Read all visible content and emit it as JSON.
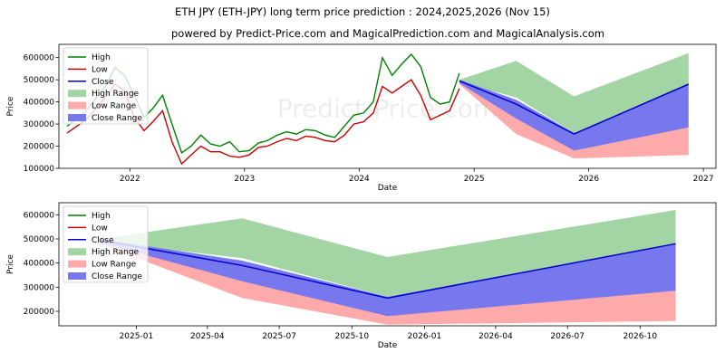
{
  "title": "ETH JPY (ETH-JPY) long term price prediction : 2024,2025,2026 (Nov 15)",
  "subtitle": "powered by Predict-Price.com and MagicalPrediction.com and MagicalAnalysis.com",
  "watermark": "Predict-Price.com",
  "colors": {
    "high": "#008000",
    "low": "#cc0000",
    "close": "#0000cc",
    "high_range": "#a3d4a3",
    "low_range": "#ffaaaa",
    "close_range": "#7777ee"
  },
  "chart_data": [
    {
      "type": "line",
      "xlabel": "Date",
      "ylabel": "Price",
      "ylim": [
        100000,
        660000
      ],
      "x_ticks": [
        "2022",
        "2023",
        "2024",
        "2025",
        "2026",
        "2027"
      ],
      "y_ticks": [
        "100000",
        "200000",
        "300000",
        "400000",
        "500000",
        "600000"
      ],
      "legend": [
        "High",
        "Low",
        "Close",
        "High Range",
        "Low Range",
        "Close Range"
      ],
      "legend_position": "upper-left",
      "grid": false,
      "history": {
        "series": [
          "High",
          "Low"
        ],
        "dates": [
          "2021-06",
          "2021-08",
          "2021-10",
          "2021-11",
          "2021-12",
          "2022-01",
          "2022-02",
          "2022-03",
          "2022-04",
          "2022-05",
          "2022-06",
          "2022-07",
          "2022-08",
          "2022-09",
          "2022-10",
          "2022-11",
          "2022-12",
          "2023-01",
          "2023-02",
          "2023-03",
          "2023-04",
          "2023-05",
          "2023-06",
          "2023-07",
          "2023-08",
          "2023-09",
          "2023-10",
          "2023-11",
          "2023-12",
          "2024-01",
          "2024-02",
          "2024-03",
          "2024-04",
          "2024-05",
          "2024-06",
          "2024-07",
          "2024-08",
          "2024-09",
          "2024-10",
          "2024-11"
        ],
        "high": [
          290000,
          360000,
          470000,
          555000,
          520000,
          430000,
          330000,
          370000,
          430000,
          300000,
          170000,
          200000,
          250000,
          210000,
          200000,
          220000,
          175000,
          180000,
          215000,
          225000,
          250000,
          265000,
          255000,
          275000,
          270000,
          250000,
          240000,
          290000,
          340000,
          350000,
          400000,
          600000,
          520000,
          570000,
          615000,
          560000,
          420000,
          390000,
          400000,
          530000
        ],
        "low": [
          260000,
          320000,
          420000,
          480000,
          450000,
          330000,
          270000,
          310000,
          360000,
          220000,
          120000,
          160000,
          200000,
          175000,
          175000,
          155000,
          150000,
          160000,
          195000,
          200000,
          220000,
          235000,
          225000,
          245000,
          240000,
          225000,
          220000,
          250000,
          300000,
          310000,
          350000,
          470000,
          440000,
          470000,
          500000,
          430000,
          320000,
          340000,
          360000,
          460000
        ]
      },
      "forecast": {
        "dates": [
          "2024-11-15",
          "2025-05-15",
          "2025-11-15",
          "2026-11-15"
        ],
        "high_range_upper": [
          500000,
          585000,
          425000,
          620000
        ],
        "high_range_lower": [
          490000,
          420000,
          260000,
          480000
        ],
        "low_range_upper": [
          490000,
          380000,
          190000,
          290000
        ],
        "low_range_lower": [
          480000,
          255000,
          145000,
          160000
        ],
        "close_range_upper": [
          500000,
          410000,
          260000,
          480000
        ],
        "close_range_lower": [
          485000,
          325000,
          180000,
          285000
        ],
        "close": [
          495000,
          390000,
          255000,
          480000
        ]
      }
    },
    {
      "type": "line",
      "xlabel": "Date",
      "ylabel": "Price",
      "ylim": [
        140000,
        650000
      ],
      "x_ticks": [
        "2025-01",
        "2025-04",
        "2025-07",
        "2025-10",
        "2026-01",
        "2026-04",
        "2026-07",
        "2026-10"
      ],
      "y_ticks": [
        "200000",
        "300000",
        "400000",
        "500000",
        "600000"
      ],
      "legend": [
        "High",
        "Low",
        "Close",
        "High Range",
        "Low Range",
        "Close Range"
      ],
      "legend_position": "upper-left",
      "grid": false,
      "forecast": {
        "dates": [
          "2024-11-15",
          "2025-05-15",
          "2025-11-15",
          "2026-11-15"
        ],
        "high_range_upper": [
          500000,
          585000,
          425000,
          620000
        ],
        "high_range_lower": [
          490000,
          420000,
          260000,
          480000
        ],
        "low_range_upper": [
          490000,
          380000,
          190000,
          290000
        ],
        "low_range_lower": [
          480000,
          255000,
          145000,
          160000
        ],
        "close_range_upper": [
          500000,
          410000,
          260000,
          480000
        ],
        "close_range_lower": [
          485000,
          325000,
          180000,
          285000
        ],
        "close": [
          495000,
          390000,
          255000,
          480000
        ]
      }
    }
  ]
}
